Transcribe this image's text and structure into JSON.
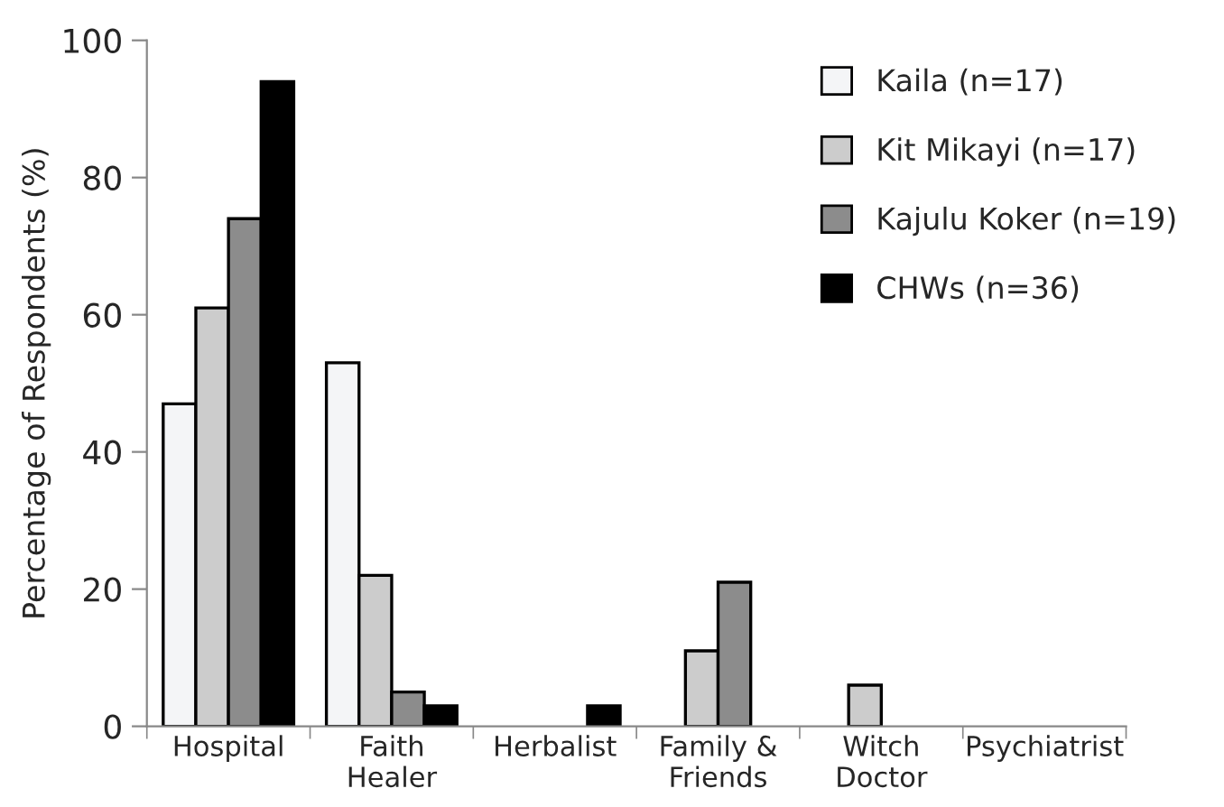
{
  "chart_data": {
    "type": "bar",
    "ylabel": "Percentage of Respondents (%)",
    "categories": [
      "Hospital",
      "Faith\nHealer",
      "Herbalist",
      "Family &\nFriends",
      "Witch\nDoctor",
      "Psychiatrist"
    ],
    "series": [
      {
        "name": "Kaila (n=17)",
        "color": "#f4f5f7",
        "values": [
          47,
          53,
          null,
          null,
          null,
          null
        ]
      },
      {
        "name": "Kit Mikayi (n=17)",
        "color": "#cccccc",
        "values": [
          61,
          22,
          null,
          11,
          6,
          null
        ]
      },
      {
        "name": "Kajulu Koker (n=19)",
        "color": "#8c8c8c",
        "values": [
          74,
          5,
          null,
          21,
          null,
          null
        ]
      },
      {
        "name": "CHWs (n=36)",
        "color": "#000000",
        "values": [
          94,
          3,
          3,
          null,
          null,
          null
        ]
      }
    ],
    "ylim": [
      0,
      100
    ],
    "yticks": [
      0,
      20,
      40,
      60,
      80,
      100
    ],
    "grid": false,
    "legend": "top right"
  }
}
